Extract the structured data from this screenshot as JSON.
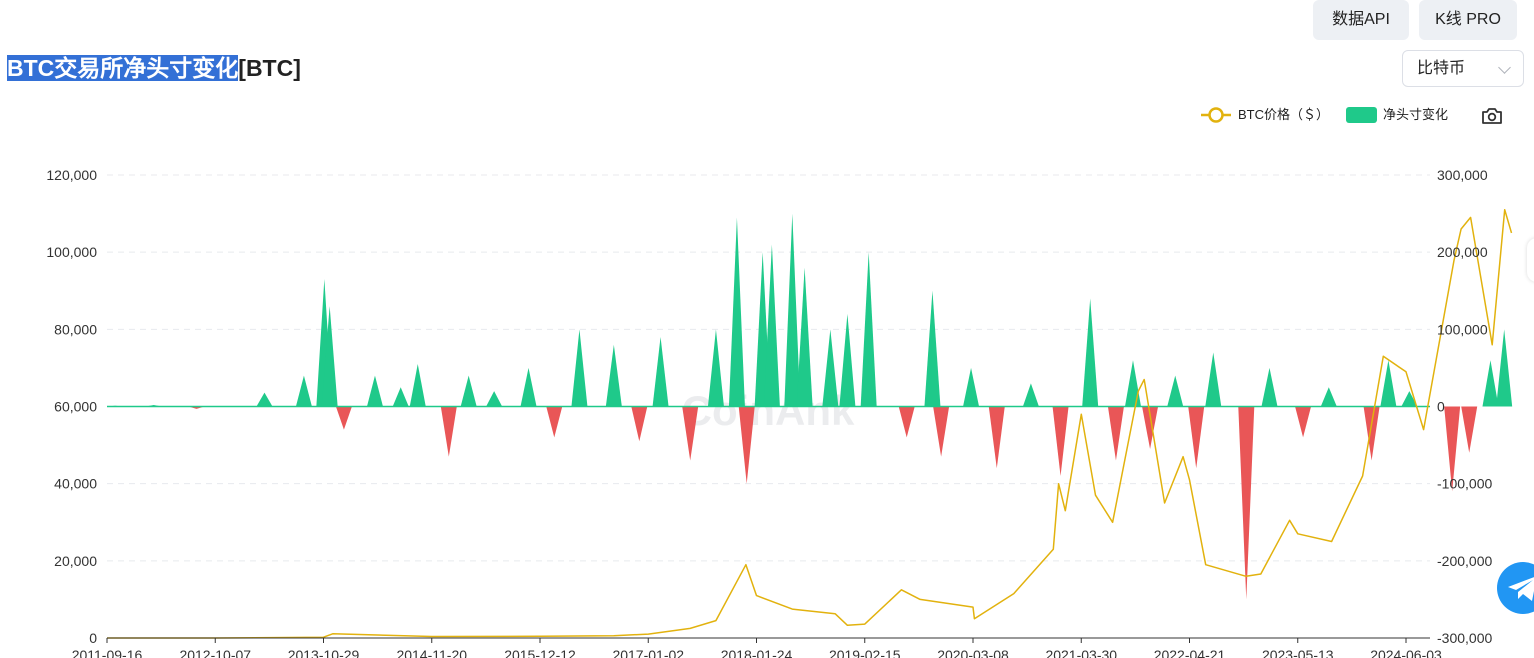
{
  "topbar": {
    "api_label": "数据API",
    "kline_label": "K线 PRO"
  },
  "title": {
    "highlight": "BTC交易所净头寸变化",
    "suffix": "[BTC]"
  },
  "coin_select": {
    "value": "比特币"
  },
  "watermark": "CoinAnk",
  "colors": {
    "price_line": "#e2b20e",
    "positive_bar": "#1fc98a",
    "negative_bar": "#e95657",
    "selection": "#3370d6"
  },
  "icons": {
    "camera": "camera-icon",
    "telegram": "telegram-icon"
  },
  "chart_data": {
    "type": "bar+line",
    "legend": [
      "BTC价格（＄）",
      "净头寸变化"
    ],
    "legend_position": "top-right",
    "grid": true,
    "x_ticks": [
      "2011-09-16",
      "2012-10-07",
      "2013-10-29",
      "2014-11-20",
      "2015-12-12",
      "2017-01-02",
      "2018-01-24",
      "2019-02-15",
      "2020-03-08",
      "2021-03-30",
      "2022-04-21",
      "2023-05-13",
      "2024-06-03"
    ],
    "left_axis": {
      "ylim": [
        0,
        120000
      ],
      "ticks": [
        "0",
        "20,000",
        "40,000",
        "60,000",
        "80,000",
        "100,000",
        "120,000"
      ]
    },
    "right_axis": {
      "ylim": [
        -300000,
        300000
      ],
      "ticks": [
        "-300,000",
        "-200,000",
        "-100,000",
        "0",
        "100,000",
        "200,000",
        "300,000"
      ]
    },
    "series": [
      {
        "name": "BTC价格（＄）",
        "type": "line",
        "axis": "left",
        "points": [
          [
            "2011-09-16",
            5
          ],
          [
            "2012-10-07",
            12
          ],
          [
            "2013-10-29",
            200
          ],
          [
            "2013-12-01",
            1100
          ],
          [
            "2014-11-20",
            380
          ],
          [
            "2015-12-12",
            430
          ],
          [
            "2016-09-01",
            600
          ],
          [
            "2017-01-02",
            1000
          ],
          [
            "2017-06-01",
            2500
          ],
          [
            "2017-09-01",
            4500
          ],
          [
            "2017-12-17",
            19000
          ],
          [
            "2018-01-24",
            11000
          ],
          [
            "2018-06-01",
            7500
          ],
          [
            "2018-11-01",
            6300
          ],
          [
            "2018-12-15",
            3300
          ],
          [
            "2019-02-15",
            3600
          ],
          [
            "2019-06-26",
            12500
          ],
          [
            "2019-09-01",
            10000
          ],
          [
            "2020-03-08",
            8000
          ],
          [
            "2020-03-13",
            5000
          ],
          [
            "2020-08-01",
            11500
          ],
          [
            "2020-12-20",
            23000
          ],
          [
            "2021-01-08",
            40000
          ],
          [
            "2021-02-01",
            33000
          ],
          [
            "2021-03-30",
            58000
          ],
          [
            "2021-05-20",
            37000
          ],
          [
            "2021-07-20",
            30000
          ],
          [
            "2021-10-20",
            64000
          ],
          [
            "2021-11-10",
            67000
          ],
          [
            "2022-01-22",
            35000
          ],
          [
            "2022-03-29",
            47000
          ],
          [
            "2022-04-21",
            41000
          ],
          [
            "2022-06-18",
            19000
          ],
          [
            "2022-11-09",
            16000
          ],
          [
            "2023-01-01",
            16600
          ],
          [
            "2023-04-14",
            30500
          ],
          [
            "2023-05-13",
            27000
          ],
          [
            "2023-09-11",
            25000
          ],
          [
            "2023-12-31",
            42000
          ],
          [
            "2024-03-14",
            73000
          ],
          [
            "2024-06-03",
            69000
          ],
          [
            "2024-08-05",
            54000
          ],
          [
            "2024-11-22",
            98000
          ],
          [
            "2024-12-17",
            106000
          ],
          [
            "2025-01-20",
            109000
          ],
          [
            "2025-04-07",
            76000
          ],
          [
            "2025-05-22",
            111000
          ],
          [
            "2025-06-15",
            105000
          ]
        ]
      },
      {
        "name": "净头寸变化",
        "type": "bar",
        "axis": "right",
        "points": [
          [
            "2011-10-15",
            1000
          ],
          [
            "2012-03-01",
            2000
          ],
          [
            "2012-08-01",
            -3000
          ],
          [
            "2013-04-01",
            18000
          ],
          [
            "2013-08-20",
            40000
          ],
          [
            "2013-11-01",
            165000
          ],
          [
            "2013-11-20",
            130000
          ],
          [
            "2014-01-10",
            -30000
          ],
          [
            "2014-05-01",
            40000
          ],
          [
            "2014-08-01",
            25000
          ],
          [
            "2014-10-01",
            55000
          ],
          [
            "2015-01-20",
            -65000
          ],
          [
            "2015-04-01",
            40000
          ],
          [
            "2015-07-01",
            20000
          ],
          [
            "2015-11-01",
            50000
          ],
          [
            "2016-02-01",
            -40000
          ],
          [
            "2016-05-01",
            100000
          ],
          [
            "2016-09-01",
            80000
          ],
          [
            "2016-12-01",
            -45000
          ],
          [
            "2017-02-15",
            90000
          ],
          [
            "2017-06-01",
            -70000
          ],
          [
            "2017-09-01",
            100000
          ],
          [
            "2017-11-15",
            245000
          ],
          [
            "2017-12-20",
            -100000
          ],
          [
            "2018-02-15",
            200000
          ],
          [
            "2018-03-20",
            210000
          ],
          [
            "2018-06-01",
            250000
          ],
          [
            "2018-07-15",
            180000
          ],
          [
            "2018-10-15",
            100000
          ],
          [
            "2018-12-15",
            120000
          ],
          [
            "2019-03-01",
            200000
          ],
          [
            "2019-07-15",
            -40000
          ],
          [
            "2019-10-15",
            150000
          ],
          [
            "2019-11-15",
            -65000
          ],
          [
            "2020-03-01",
            50000
          ],
          [
            "2020-06-01",
            -80000
          ],
          [
            "2020-10-01",
            30000
          ],
          [
            "2021-01-15",
            -90000
          ],
          [
            "2021-05-01",
            140000
          ],
          [
            "2021-08-01",
            -70000
          ],
          [
            "2021-10-01",
            60000
          ],
          [
            "2021-12-01",
            -55000
          ],
          [
            "2022-03-01",
            40000
          ],
          [
            "2022-05-15",
            -80000
          ],
          [
            "2022-07-15",
            70000
          ],
          [
            "2022-11-10",
            -250000
          ],
          [
            "2023-02-01",
            50000
          ],
          [
            "2023-06-01",
            -40000
          ],
          [
            "2023-09-01",
            25000
          ],
          [
            "2024-02-01",
            -70000
          ],
          [
            "2024-04-01",
            60000
          ],
          [
            "2024-06-15",
            20000
          ],
          [
            "2024-11-15",
            -110000
          ],
          [
            "2025-01-15",
            -60000
          ],
          [
            "2025-04-01",
            60000
          ],
          [
            "2025-05-20",
            100000
          ]
        ]
      }
    ]
  }
}
